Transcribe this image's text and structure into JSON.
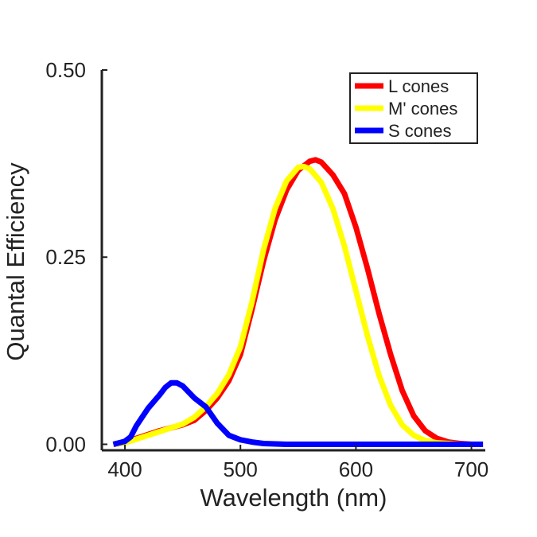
{
  "chart_data": {
    "type": "line",
    "title": "",
    "xlabel": "Wavelength (nm)",
    "ylabel": "Quantal Efficiency",
    "xlim": [
      380,
      712
    ],
    "ylim": [
      -0.008,
      0.5
    ],
    "xticks": [
      400,
      500,
      600,
      700
    ],
    "yticks": [
      0.0,
      0.25,
      0.5
    ],
    "xtick_labels": [
      "400",
      "500",
      "600",
      "700"
    ],
    "ytick_labels": [
      "0.00",
      "0.25",
      "0.50"
    ],
    "grid": false,
    "legend": "top-right",
    "series": [
      {
        "name": "L cones",
        "color": "#ff0000",
        "x": [
          390,
          400,
          410,
          420,
          430,
          440,
          450,
          460,
          470,
          480,
          490,
          500,
          510,
          520,
          530,
          540,
          550,
          560,
          565,
          570,
          580,
          590,
          600,
          610,
          620,
          630,
          640,
          650,
          660,
          670,
          680,
          690,
          700,
          710
        ],
        "y": [
          0.0,
          0.002,
          0.008,
          0.013,
          0.018,
          0.022,
          0.026,
          0.032,
          0.045,
          0.062,
          0.085,
          0.12,
          0.18,
          0.245,
          0.3,
          0.34,
          0.366,
          0.378,
          0.38,
          0.377,
          0.36,
          0.335,
          0.29,
          0.235,
          0.175,
          0.12,
          0.072,
          0.038,
          0.018,
          0.008,
          0.003,
          0.001,
          0.0,
          0.0
        ]
      },
      {
        "name": "M' cones",
        "color": "#ffff00",
        "x": [
          390,
          400,
          410,
          420,
          430,
          440,
          450,
          460,
          470,
          480,
          490,
          500,
          510,
          520,
          530,
          540,
          550,
          555,
          560,
          570,
          580,
          590,
          600,
          610,
          620,
          630,
          640,
          650,
          660,
          670,
          680,
          690,
          700,
          710
        ],
        "y": [
          0.0,
          0.002,
          0.007,
          0.012,
          0.017,
          0.022,
          0.027,
          0.036,
          0.05,
          0.068,
          0.093,
          0.13,
          0.19,
          0.26,
          0.315,
          0.352,
          0.37,
          0.371,
          0.368,
          0.35,
          0.315,
          0.265,
          0.205,
          0.145,
          0.092,
          0.052,
          0.026,
          0.012,
          0.005,
          0.002,
          0.001,
          0.0,
          0.0,
          0.0
        ]
      },
      {
        "name": "S cones",
        "color": "#0000ff",
        "x": [
          390,
          400,
          405,
          410,
          420,
          430,
          435,
          440,
          445,
          450,
          460,
          470,
          480,
          490,
          500,
          510,
          520,
          540,
          560,
          600,
          650,
          710
        ],
        "y": [
          0.0,
          0.004,
          0.01,
          0.025,
          0.048,
          0.066,
          0.076,
          0.082,
          0.082,
          0.078,
          0.062,
          0.05,
          0.028,
          0.012,
          0.006,
          0.003,
          0.001,
          0.0,
          0.0,
          0.0,
          0.0,
          0.0
        ]
      }
    ]
  }
}
